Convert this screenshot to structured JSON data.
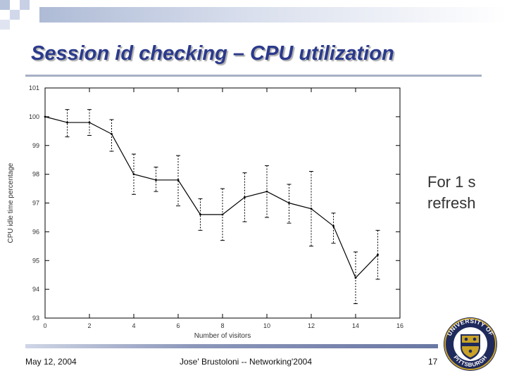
{
  "slide": {
    "title": "Session id checking – CPU utilization",
    "annotation_line1": "For 1 s",
    "annotation_line2": "refresh",
    "footer_date": "May 12, 2004",
    "footer_center": "Jose' Brustoloni -- Networking'2004",
    "page_number": "17"
  },
  "logo": {
    "text_top": "UNIVERSITY OF",
    "text_bottom": "PITTSBURGH",
    "colors": {
      "navy": "#1f2a5c",
      "gold": "#c9a227"
    }
  },
  "colors": {
    "title": "#2b3a8c",
    "line": "#000000",
    "axis": "#000000"
  },
  "chart_data": {
    "type": "line",
    "title": "",
    "xlabel": "Number of visitors",
    "ylabel": "CPU idle time percentage",
    "xlim": [
      0,
      16
    ],
    "ylim": [
      93,
      101
    ],
    "x_ticks": [
      "0",
      "2",
      "4",
      "6",
      "8",
      "10",
      "12",
      "14",
      "16"
    ],
    "y_ticks": [
      "93",
      "94",
      "95",
      "96",
      "97",
      "98",
      "99",
      "100",
      "101"
    ],
    "grid": false,
    "series": [
      {
        "x": [
          0,
          1,
          2,
          3,
          4,
          5,
          6,
          7,
          8,
          9,
          10,
          11,
          12,
          13,
          14,
          15
        ],
        "y": [
          100.0,
          99.8,
          99.8,
          99.4,
          98.0,
          97.8,
          97.8,
          96.6,
          96.6,
          97.2,
          97.4,
          97.0,
          96.8,
          96.2,
          94.4,
          95.2
        ],
        "error_low": [
          100.0,
          99.3,
          99.35,
          98.8,
          97.3,
          97.4,
          96.9,
          96.05,
          95.7,
          96.35,
          96.5,
          96.3,
          95.5,
          95.6,
          93.5,
          94.35
        ],
        "error_high": [
          100.0,
          100.25,
          100.25,
          99.9,
          98.7,
          98.25,
          98.65,
          97.15,
          97.5,
          98.05,
          98.3,
          97.65,
          98.1,
          96.65,
          95.3,
          96.05
        ]
      }
    ]
  }
}
